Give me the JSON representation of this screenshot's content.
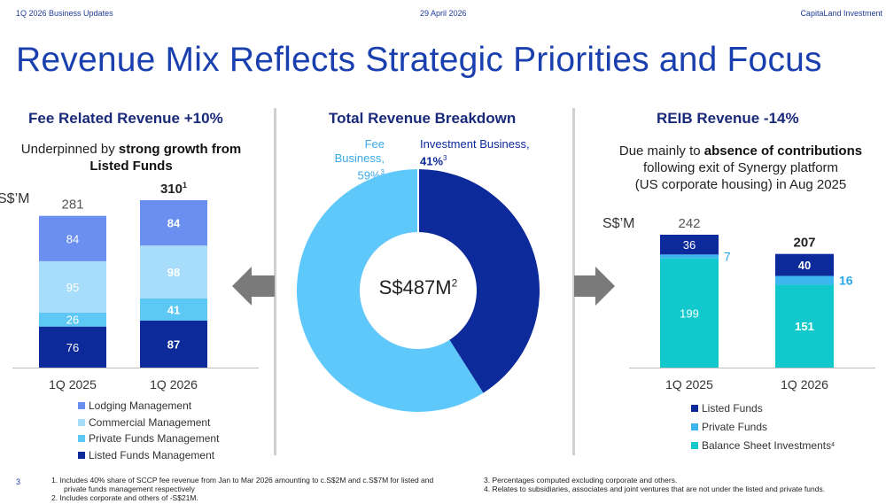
{
  "header": {
    "left": "1Q 2026 Business Updates",
    "center": "29 April 2026",
    "right": "CapitaLand Investment"
  },
  "title": "Revenue Mix Reflects Strategic Priorities and Focus",
  "page_number": "3",
  "left_panel": {
    "title": "Fee Related Revenue +10%",
    "subtitle_plain": "Underpinned by ",
    "subtitle_bold": "strong growth from Listed Funds",
    "unit": "S$’M",
    "totals": [
      "281",
      "310"
    ],
    "total_sup": [
      "",
      "1"
    ],
    "legend": [
      "Lodging Management",
      "Commercial Management",
      "Private Funds Management",
      "Listed Funds Management"
    ]
  },
  "center_panel": {
    "title": "Total Revenue Breakdown",
    "fee_label": "Fee Business,",
    "fee_value": "59%",
    "fee_sup": "3",
    "inv_label": "Investment Business,",
    "inv_value": "41%",
    "inv_sup": "3",
    "center_value": "S$487M",
    "center_sup": "2"
  },
  "right_panel": {
    "title": "REIB Revenue -14%",
    "subtitle_plain1": "Due mainly to ",
    "subtitle_bold": "absence of contributions",
    "subtitle_line2": "following exit of Synergy platform",
    "subtitle_line3": "(US corporate housing) in Aug 2025",
    "unit": "S$’M",
    "totals": [
      "242",
      "207"
    ],
    "legend": [
      "Listed Funds",
      "Private Funds",
      "Balance Sheet Investments"
    ],
    "legend_sup": "4"
  },
  "footnotes": {
    "n1": "1.   Includes 40% share of SCCP fee revenue from Jan to Mar 2026 amounting to c.S$2M and c.S$7M for listed and",
    "n1b": "private funds management respectively",
    "n2": "2.   Includes corporate and others of -S$21M.",
    "n3": "3.   Percentages computed excluding corporate and others.",
    "n4": "4.   Relates to subsidiaries, associates and joint ventures that are not under the listed and private funds."
  },
  "colors": {
    "lodging": "#6a8ff0",
    "commercial": "#a7dcfb",
    "private_funds_mgmt": "#5ec8f5",
    "listed_funds_mgmt": "#0d2a9a",
    "reib_listed": "#0d2a9a",
    "reib_private": "#3db5ee",
    "reib_balance_sheet": "#11c9cc",
    "donut_fee": "#5ec8fb",
    "donut_invest": "#0d2a9a",
    "title": "#1a3fae"
  },
  "chart_data": [
    {
      "type": "bar",
      "stacked": true,
      "title": "Fee Related Revenue +10%",
      "ylabel": "S$’M",
      "categories": [
        "1Q 2025",
        "1Q 2026"
      ],
      "series": [
        {
          "name": "Listed Funds Management",
          "values": [
            76,
            87
          ]
        },
        {
          "name": "Private Funds Management",
          "values": [
            26,
            41
          ]
        },
        {
          "name": "Commercial Management",
          "values": [
            95,
            98
          ]
        },
        {
          "name": "Lodging Management",
          "values": [
            84,
            84
          ]
        }
      ],
      "totals": [
        281,
        310
      ]
    },
    {
      "type": "pie",
      "title": "Total Revenue Breakdown",
      "labels": [
        "Investment Business",
        "Fee Business"
      ],
      "values": [
        41,
        59
      ],
      "center_label": "S$487M"
    },
    {
      "type": "bar",
      "stacked": true,
      "title": "REIB Revenue -14%",
      "ylabel": "S$’M",
      "categories": [
        "1Q 2025",
        "1Q 2026"
      ],
      "series": [
        {
          "name": "Balance Sheet Investments",
          "values": [
            199,
            151
          ]
        },
        {
          "name": "Private Funds",
          "values": [
            7,
            16
          ]
        },
        {
          "name": "Listed Funds",
          "values": [
            36,
            40
          ]
        }
      ],
      "totals": [
        242,
        207
      ]
    }
  ]
}
